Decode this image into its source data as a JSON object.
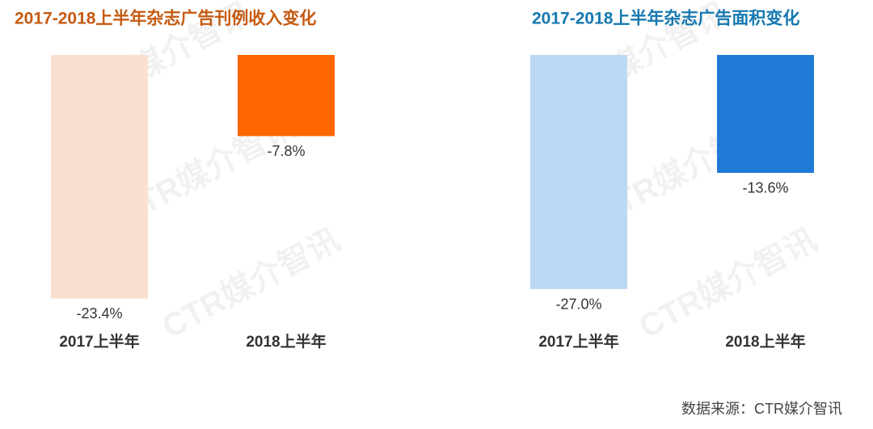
{
  "chart_data": [
    {
      "type": "bar",
      "title": "2017-2018上半年杂志广告刊例收入变化",
      "title_color": "#c55a11",
      "categories": [
        "2017上半年",
        "2018上半年"
      ],
      "values": [
        -23.4,
        -7.8
      ],
      "value_labels": [
        "-23.4%",
        "-7.8%"
      ],
      "colors": [
        "#fce0cf",
        "#ff6600"
      ],
      "ylim": [
        -25,
        0
      ]
    },
    {
      "type": "bar",
      "title": "2017-2018上半年杂志广告面积变化",
      "title_color": "#1578b0",
      "categories": [
        "2017上半年",
        "2018上半年"
      ],
      "values": [
        -27.0,
        -13.6
      ],
      "value_labels": [
        "-27.0%",
        "-13.6%"
      ],
      "colors": [
        "#bdd8f3",
        "#1f7ad6"
      ],
      "ylim": [
        -30,
        0
      ]
    }
  ],
  "watermark": "CTR媒介智讯",
  "source": "数据来源：CTR媒介智讯"
}
